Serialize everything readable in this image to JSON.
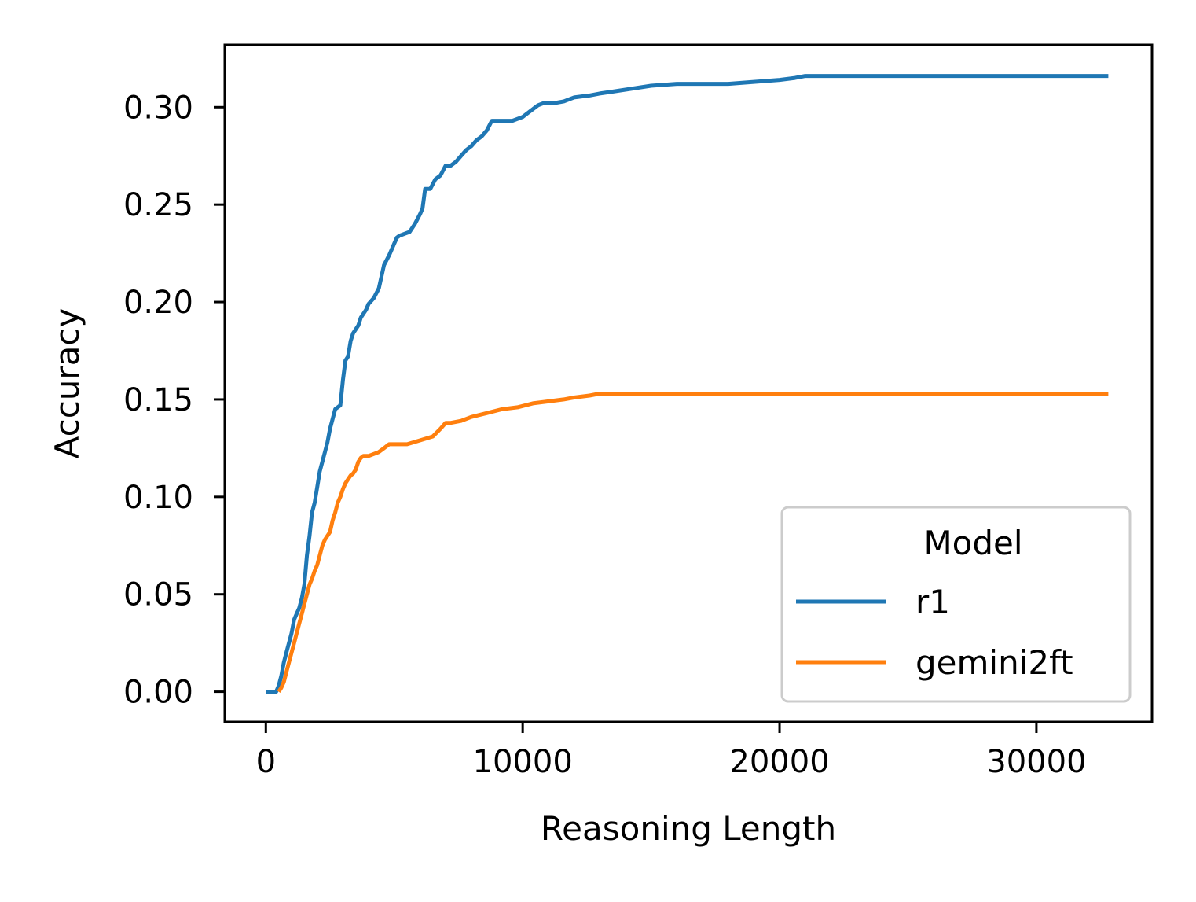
{
  "chart_data": {
    "type": "line",
    "title": "",
    "xlabel": "Reasoning Length",
    "ylabel": "Accuracy",
    "xlim": [
      -1600,
      34500
    ],
    "ylim": [
      -0.0155,
      0.332
    ],
    "xticks": [
      0,
      10000,
      20000,
      30000
    ],
    "xtick_labels": [
      "0",
      "10000",
      "20000",
      "30000"
    ],
    "yticks": [
      0.0,
      0.05,
      0.1,
      0.15,
      0.2,
      0.25,
      0.3
    ],
    "ytick_labels": [
      "0.00",
      "0.05",
      "0.10",
      "0.15",
      "0.20",
      "0.25",
      "0.30"
    ],
    "grid": false,
    "legend": {
      "title": "Model",
      "position": "lower-right"
    },
    "series": [
      {
        "name": "r1",
        "color": "#1f77b4",
        "x": [
          0,
          400,
          500,
          600,
          700,
          800,
          900,
          1000,
          1100,
          1200,
          1300,
          1400,
          1500,
          1600,
          1700,
          1800,
          1900,
          2000,
          2100,
          2200,
          2300,
          2400,
          2500,
          2600,
          2700,
          2800,
          2900,
          3000,
          3100,
          3200,
          3300,
          3400,
          3500,
          3600,
          3700,
          3800,
          3900,
          4000,
          4200,
          4400,
          4600,
          4800,
          5000,
          5100,
          5200,
          5400,
          5600,
          5800,
          6000,
          6100,
          6200,
          6300,
          6400,
          6600,
          6800,
          7000,
          7200,
          7400,
          7600,
          7800,
          8000,
          8200,
          8400,
          8600,
          8800,
          9000,
          9200,
          9600,
          10000,
          10200,
          10400,
          10600,
          10800,
          11200,
          11600,
          12000,
          12600,
          13000,
          13500,
          14000,
          14500,
          15000,
          16000,
          17000,
          18000,
          19000,
          20000,
          20600,
          21000,
          25000,
          30000,
          32800
        ],
        "y": [
          0.0,
          0.0,
          0.003,
          0.008,
          0.015,
          0.02,
          0.025,
          0.03,
          0.037,
          0.04,
          0.043,
          0.048,
          0.055,
          0.07,
          0.08,
          0.092,
          0.097,
          0.105,
          0.113,
          0.118,
          0.123,
          0.128,
          0.135,
          0.14,
          0.145,
          0.146,
          0.147,
          0.16,
          0.17,
          0.172,
          0.18,
          0.184,
          0.186,
          0.188,
          0.192,
          0.194,
          0.196,
          0.199,
          0.202,
          0.207,
          0.219,
          0.224,
          0.23,
          0.233,
          0.234,
          0.235,
          0.236,
          0.24,
          0.245,
          0.248,
          0.258,
          0.258,
          0.258,
          0.263,
          0.265,
          0.27,
          0.27,
          0.272,
          0.275,
          0.278,
          0.28,
          0.283,
          0.285,
          0.288,
          0.293,
          0.293,
          0.293,
          0.293,
          0.295,
          0.297,
          0.299,
          0.301,
          0.302,
          0.302,
          0.303,
          0.305,
          0.306,
          0.307,
          0.308,
          0.309,
          0.31,
          0.311,
          0.312,
          0.312,
          0.312,
          0.313,
          0.314,
          0.315,
          0.316,
          0.316,
          0.316,
          0.316
        ]
      },
      {
        "name": "gemini2ft",
        "color": "#ff7f0e",
        "x": [
          500,
          600,
          700,
          800,
          900,
          1000,
          1100,
          1200,
          1300,
          1400,
          1500,
          1600,
          1700,
          1800,
          1900,
          2000,
          2100,
          2200,
          2300,
          2400,
          2500,
          2600,
          2700,
          2800,
          2900,
          3000,
          3100,
          3200,
          3300,
          3400,
          3500,
          3600,
          3700,
          3800,
          3900,
          4000,
          4200,
          4400,
          4600,
          4800,
          5000,
          5500,
          6000,
          6500,
          6800,
          7000,
          7200,
          7600,
          8000,
          8600,
          9200,
          9800,
          10400,
          11000,
          11600,
          12000,
          12600,
          13000,
          15000,
          20000,
          25000,
          30000,
          32800
        ],
        "y": [
          0.0,
          0.002,
          0.005,
          0.01,
          0.015,
          0.02,
          0.025,
          0.03,
          0.035,
          0.04,
          0.045,
          0.05,
          0.055,
          0.058,
          0.062,
          0.065,
          0.07,
          0.075,
          0.078,
          0.08,
          0.082,
          0.088,
          0.092,
          0.097,
          0.1,
          0.104,
          0.107,
          0.109,
          0.111,
          0.112,
          0.114,
          0.118,
          0.12,
          0.121,
          0.121,
          0.121,
          0.122,
          0.123,
          0.125,
          0.127,
          0.127,
          0.127,
          0.129,
          0.131,
          0.135,
          0.138,
          0.138,
          0.139,
          0.141,
          0.143,
          0.145,
          0.146,
          0.148,
          0.149,
          0.15,
          0.151,
          0.152,
          0.153,
          0.153,
          0.153,
          0.153,
          0.153,
          0.153
        ]
      }
    ]
  }
}
